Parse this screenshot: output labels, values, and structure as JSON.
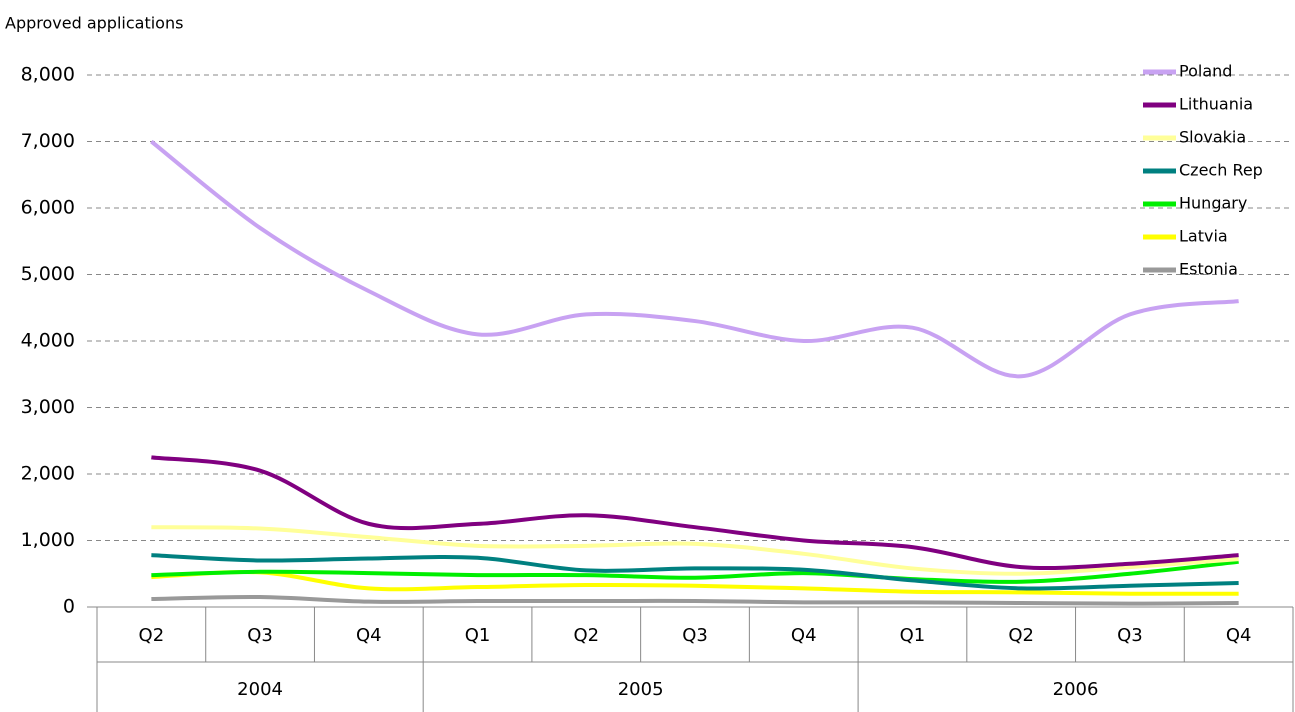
{
  "chart_data": {
    "type": "line",
    "y_label": "Approved applications",
    "category_groups": [
      {
        "label": "2004",
        "categories": [
          "Q2",
          "Q3",
          "Q4"
        ]
      },
      {
        "label": "2005",
        "categories": [
          "Q1",
          "Q2",
          "Q3",
          "Q4"
        ]
      },
      {
        "label": "2006",
        "categories": [
          "Q1",
          "Q2",
          "Q3",
          "Q4"
        ]
      }
    ],
    "series": [
      {
        "name": "Poland",
        "color": "#c8a2f2",
        "values": [
          7000,
          5700,
          4750,
          4100,
          4400,
          4300,
          4000,
          4200,
          3470,
          4400,
          4600
        ]
      },
      {
        "name": "Lithuania",
        "color": "#800080",
        "values": [
          2250,
          2050,
          1250,
          1250,
          1380,
          1200,
          1000,
          900,
          600,
          650,
          780
        ]
      },
      {
        "name": "Slovakia",
        "color": "#ffff99",
        "values": [
          1200,
          1180,
          1050,
          920,
          920,
          950,
          800,
          580,
          500,
          600,
          720
        ]
      },
      {
        "name": "Czech Rep",
        "color": "#008080",
        "values": [
          780,
          700,
          730,
          740,
          550,
          580,
          560,
          400,
          280,
          320,
          360
        ]
      },
      {
        "name": "Hungary",
        "color": "#00ee00",
        "values": [
          480,
          530,
          510,
          480,
          480,
          440,
          510,
          420,
          380,
          500,
          680
        ]
      },
      {
        "name": "Latvia",
        "color": "#ffff00",
        "values": [
          450,
          520,
          280,
          300,
          330,
          320,
          280,
          230,
          220,
          200,
          200
        ]
      },
      {
        "name": "Estonia",
        "color": "#999999",
        "values": [
          120,
          150,
          80,
          90,
          90,
          90,
          70,
          70,
          60,
          50,
          60
        ]
      }
    ],
    "ylim": [
      0,
      8000
    ],
    "yticks": [
      0,
      {
        "value": 1000,
        "label": "1,000"
      },
      {
        "value": 2000,
        "label": "2,000"
      },
      {
        "value": 3000,
        "label": "3,000"
      },
      {
        "value": 4000,
        "label": "4,000"
      },
      {
        "value": 5000,
        "label": "5,000"
      },
      {
        "value": 6000,
        "label": "6,000"
      },
      {
        "value": 7000,
        "label": "7,000"
      },
      {
        "value": 8000,
        "label": "8,000"
      }
    ],
    "grid": true,
    "legend": "top-right",
    "smooth": true
  }
}
